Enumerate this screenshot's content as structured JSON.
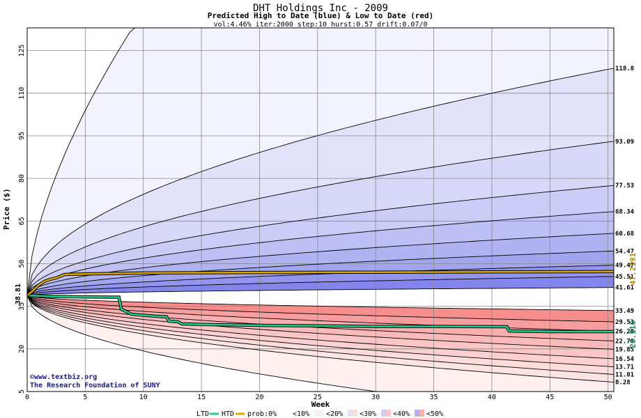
{
  "chart_data": {
    "type": "area",
    "title": "DHT Holdings Inc - 2009",
    "subtitle": "Predicted High to Date (blue) &  Low to Date (red)",
    "params": "vol:4.46% iter:2000 step:10 hurst:0.57 drift:0.07/0",
    "xlabel": "Week",
    "ylabel": "Price ($)",
    "xlim": [
      0,
      50.5
    ],
    "ylim": [
      5,
      133
    ],
    "x_ticks": [
      "0",
      "5",
      "10",
      "15",
      "20",
      "25",
      "30",
      "35",
      "40",
      "45",
      "50"
    ],
    "y_ticks": [
      "5",
      "20",
      "35",
      "50",
      "65",
      "80",
      "95",
      "110",
      "125"
    ],
    "grid": true,
    "start_price": 38.81,
    "start_price_label": "38.81",
    "high_end_labels": [
      "118.8",
      "93.09",
      "77.53",
      "68.34",
      "60.68",
      "54.47",
      "49.47",
      "45.51",
      "41.61"
    ],
    "high_end_values": [
      118.8,
      93.09,
      77.53,
      68.34,
      60.68,
      54.47,
      49.47,
      45.51,
      41.61
    ],
    "high_upper_extreme": 133,
    "low_end_labels": [
      "33.49",
      "29.53",
      "26.20",
      "22.78",
      "19.85",
      "16.54",
      "13.71",
      "11.01",
      "8.28"
    ],
    "low_end_values": [
      33.49,
      29.53,
      26.2,
      22.78,
      19.85,
      16.54,
      13.71,
      11.01,
      8.28
    ],
    "low_lower_extreme": 5,
    "htd_series": {
      "name": "HTD",
      "color": "#d9a800",
      "points": [
        [
          0,
          38.81
        ],
        [
          0.5,
          40.5
        ],
        [
          1,
          42.5
        ],
        [
          1.5,
          43.8
        ],
        [
          2,
          44.5
        ],
        [
          2.5,
          45
        ],
        [
          3,
          45.8
        ],
        [
          3.2,
          46.2
        ],
        [
          5,
          46.4
        ],
        [
          10,
          46.7
        ],
        [
          20,
          46.9
        ],
        [
          30,
          47.0
        ],
        [
          40,
          47.1
        ],
        [
          50.5,
          47.2
        ]
      ],
      "end_label": "47.2191"
    },
    "ltd_series": {
      "name": "LTD",
      "color": "#20d08c",
      "points": [
        [
          0,
          38.81
        ],
        [
          2,
          38.5
        ],
        [
          5,
          38.3
        ],
        [
          7.9,
          38.2
        ],
        [
          8.1,
          34
        ],
        [
          9,
          32.2
        ],
        [
          11,
          31.5
        ],
        [
          12,
          31.3
        ],
        [
          12.2,
          29.8
        ],
        [
          13,
          29.5
        ],
        [
          13.3,
          28.8
        ],
        [
          15,
          28.6
        ],
        [
          20,
          28.3
        ],
        [
          25,
          28.1
        ],
        [
          30,
          27.9
        ],
        [
          35,
          27.9
        ],
        [
          41.3,
          27.8
        ],
        [
          41.5,
          26.3
        ],
        [
          45,
          26.1
        ],
        [
          50.5,
          26.1
        ]
      ],
      "end_label": "26.116"
    },
    "legend": {
      "placement": "bottom",
      "items": [
        "LTD",
        "HTD",
        "prob:0%",
        "<10%",
        "<20%",
        "<30%",
        "<40%",
        "<50%"
      ],
      "colors": {
        "ltd": "#20d08c",
        "htd": "#d9a800",
        "prob0": "#ffffff",
        "lt10": [
          "#f3f3fd",
          "#fff0f0"
        ],
        "lt20": [
          "#e2e2fa",
          "#fddcdc"
        ],
        "lt30": [
          "#cccdf6",
          "#fcc6c6"
        ],
        "lt40": [
          "#b0b2f2",
          "#faaeae"
        ],
        "lt50": [
          "#9394ee",
          "#f78e8e"
        ]
      }
    },
    "copyright": "©www.textbiz.org",
    "org": "The Research Foundation of SUNY"
  }
}
